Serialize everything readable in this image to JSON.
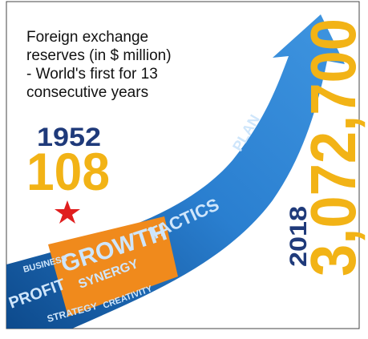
{
  "title": [
    "Foreign exchange",
    "reserves (in $ million)",
    "- World's first for 13",
    "consecutive years"
  ],
  "start": {
    "year": "1952",
    "value": "108"
  },
  "end": {
    "year": "2018",
    "value": "3,072,700"
  },
  "arrow_words": [
    "GROWTH",
    "TACTICS",
    "PROFIT",
    "STRATEGY",
    "SYNERGY",
    "CREATIVITY",
    "BUSINESS",
    "PLAN"
  ]
}
